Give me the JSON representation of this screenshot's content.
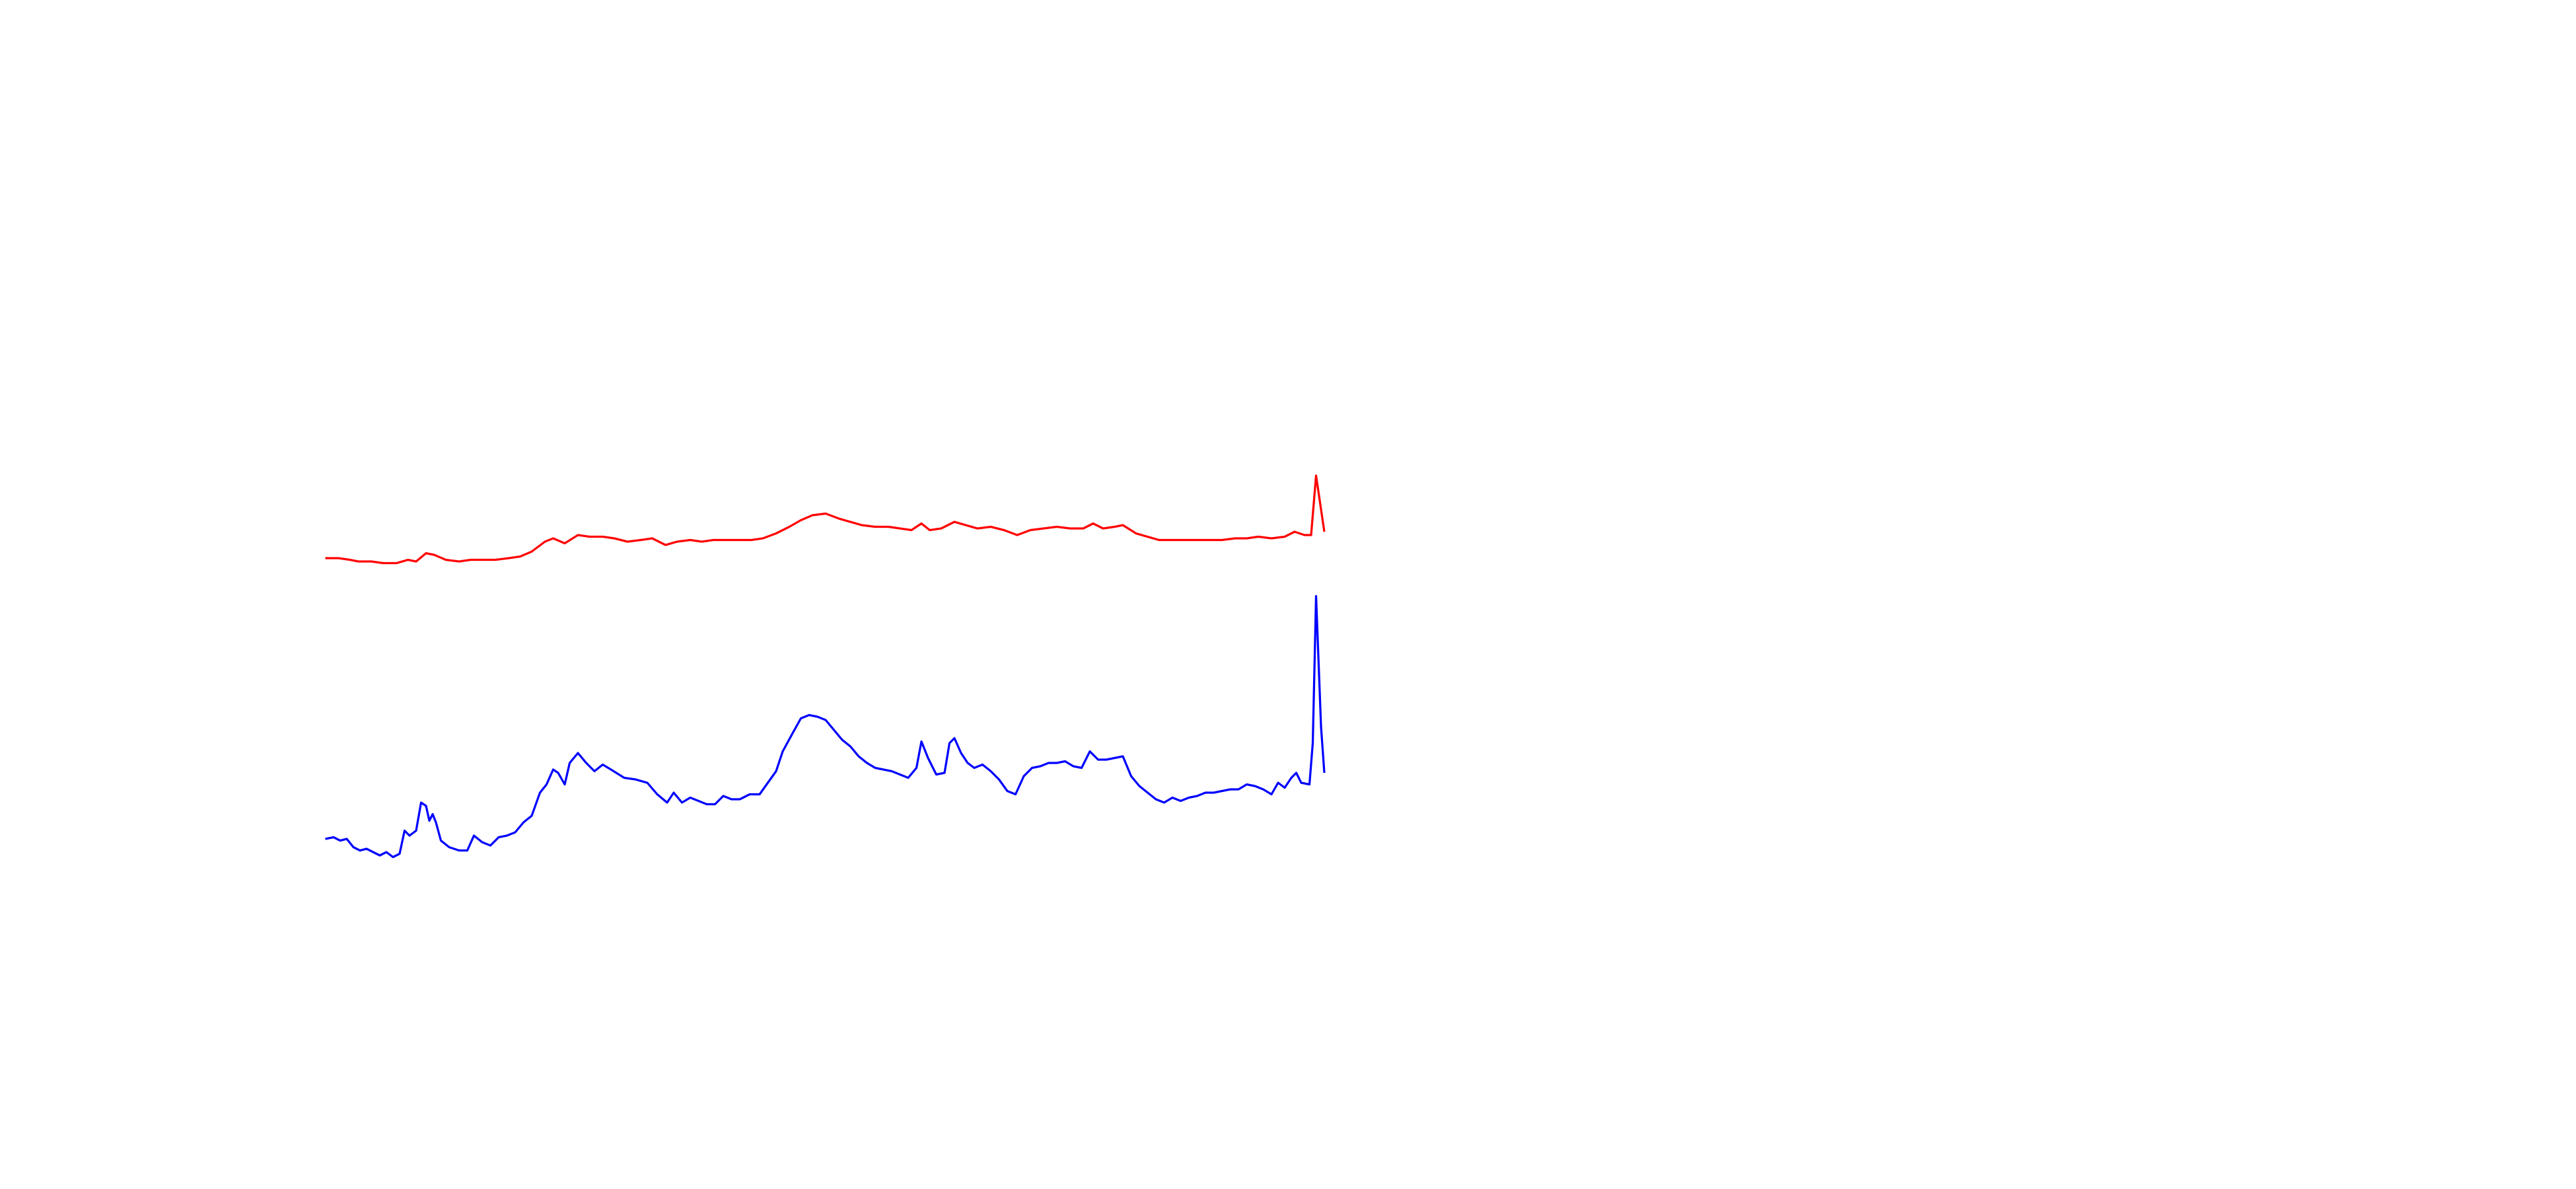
{
  "chart_data": {
    "type": "line",
    "xlim": [
      0,
      1560
    ],
    "ylim": [
      720,
      0
    ],
    "series": [
      {
        "color": "#ff0000",
        "x": [
          197,
          205,
          212,
          217,
          225,
          232,
          240,
          247,
          252,
          258,
          263,
          270,
          278,
          285,
          292,
          300,
          308,
          315,
          322,
          330,
          335,
          342,
          350,
          357,
          365,
          372,
          380,
          388,
          395,
          403,
          410,
          418,
          425,
          432,
          440,
          448,
          455,
          462,
          470,
          478,
          485,
          492,
          500,
          508,
          515,
          522,
          530,
          538,
          545,
          552,
          558,
          563,
          570,
          578,
          585,
          592,
          600,
          608,
          616,
          624,
          632,
          640,
          648,
          656,
          662,
          668,
          675,
          680,
          688,
          695,
          702,
          710,
          718,
          725,
          732,
          740,
          748,
          755,
          762,
          770,
          778,
          784,
          790,
          794,
          797,
          802
        ],
        "values": [
          338,
          338,
          339,
          340,
          340,
          341,
          341,
          339,
          340,
          335,
          336,
          339,
          340,
          339,
          339,
          339,
          338,
          337,
          334,
          328,
          326,
          329,
          324,
          325,
          325,
          326,
          328,
          327,
          326,
          330,
          328,
          327,
          328,
          327,
          327,
          327,
          327,
          326,
          323,
          319,
          315,
          312,
          311,
          314,
          316,
          318,
          319,
          319,
          320,
          321,
          317,
          321,
          320,
          316,
          318,
          320,
          319,
          321,
          324,
          321,
          320,
          319,
          320,
          320,
          317,
          320,
          319,
          318,
          323,
          325,
          327,
          327,
          327,
          327,
          327,
          327,
          326,
          326,
          325,
          326,
          325,
          322,
          324,
          324,
          288,
          322
        ]
      },
      {
        "color": "#0000ff",
        "x": [
          197,
          202,
          206,
          210,
          214,
          218,
          222,
          226,
          230,
          234,
          238,
          242,
          245,
          248,
          252,
          255,
          258,
          260,
          262,
          264,
          267,
          272,
          278,
          283,
          287,
          292,
          297,
          302,
          307,
          312,
          317,
          322,
          327,
          331,
          335,
          338,
          342,
          345,
          350,
          355,
          360,
          365,
          370,
          378,
          385,
          392,
          398,
          404,
          408,
          413,
          418,
          423,
          428,
          433,
          438,
          443,
          448,
          454,
          460,
          465,
          470,
          474,
          480,
          485,
          490,
          495,
          500,
          505,
          510,
          515,
          520,
          525,
          530,
          535,
          540,
          545,
          550,
          555,
          558,
          562,
          567,
          572,
          575,
          578,
          582,
          586,
          590,
          595,
          600,
          605,
          610,
          615,
          620,
          625,
          630,
          635,
          640,
          645,
          650,
          655,
          660,
          665,
          670,
          675,
          680,
          685,
          690,
          695,
          700,
          705,
          710,
          715,
          720,
          725,
          730,
          735,
          740,
          745,
          750,
          755,
          760,
          765,
          770,
          774,
          778,
          782,
          785,
          788,
          793,
          795,
          797,
          800,
          802
        ],
        "values": [
          508,
          507,
          509,
          508,
          513,
          515,
          514,
          516,
          518,
          516,
          519,
          517,
          503,
          506,
          503,
          486,
          488,
          497,
          493,
          498,
          509,
          513,
          515,
          515,
          506,
          510,
          512,
          507,
          506,
          504,
          498,
          494,
          480,
          475,
          466,
          468,
          475,
          462,
          456,
          462,
          467,
          463,
          466,
          471,
          472,
          474,
          481,
          486,
          480,
          486,
          483,
          485,
          487,
          487,
          482,
          484,
          484,
          481,
          481,
          474,
          467,
          455,
          444,
          435,
          433,
          434,
          436,
          442,
          448,
          452,
          458,
          462,
          465,
          466,
          467,
          469,
          471,
          465,
          449,
          459,
          469,
          468,
          450,
          447,
          456,
          462,
          465,
          463,
          467,
          472,
          479,
          481,
          470,
          465,
          464,
          462,
          462,
          461,
          464,
          465,
          455,
          460,
          460,
          459,
          458,
          470,
          476,
          480,
          484,
          486,
          483,
          485,
          483,
          482,
          480,
          480,
          479,
          478,
          478,
          475,
          476,
          478,
          481,
          474,
          477,
          471,
          468,
          474,
          475,
          450,
          361,
          440,
          468
        ]
      }
    ]
  }
}
